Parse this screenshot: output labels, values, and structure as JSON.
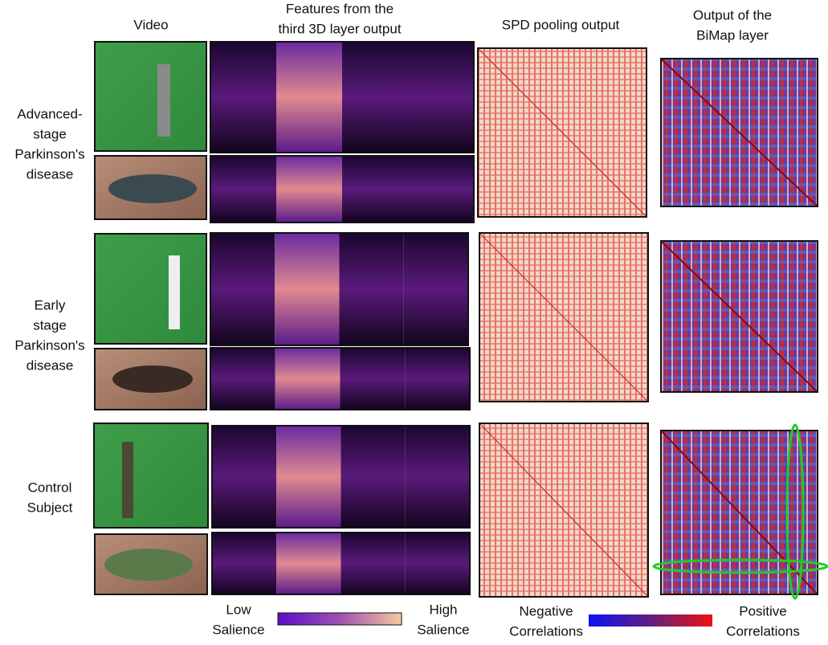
{
  "columns": [
    [
      "Video"
    ],
    [
      "Features from the",
      "third 3D layer output"
    ],
    [
      "SPD pooling output"
    ],
    [
      "Output of the",
      "BiMap layer"
    ]
  ],
  "rows": [
    [
      "Advanced-",
      "stage",
      "Parkinson's",
      "disease"
    ],
    [
      "Early",
      "stage",
      "Parkinson's",
      "disease"
    ],
    [
      "Control",
      "Subject"
    ]
  ],
  "legends": {
    "salience": {
      "low": [
        "Low",
        "Salience"
      ],
      "high": [
        "High",
        "Salience"
      ]
    },
    "correlation": {
      "negative": [
        "Negative",
        "Correlations"
      ],
      "positive": [
        "Positive",
        "Correlations"
      ]
    }
  }
}
